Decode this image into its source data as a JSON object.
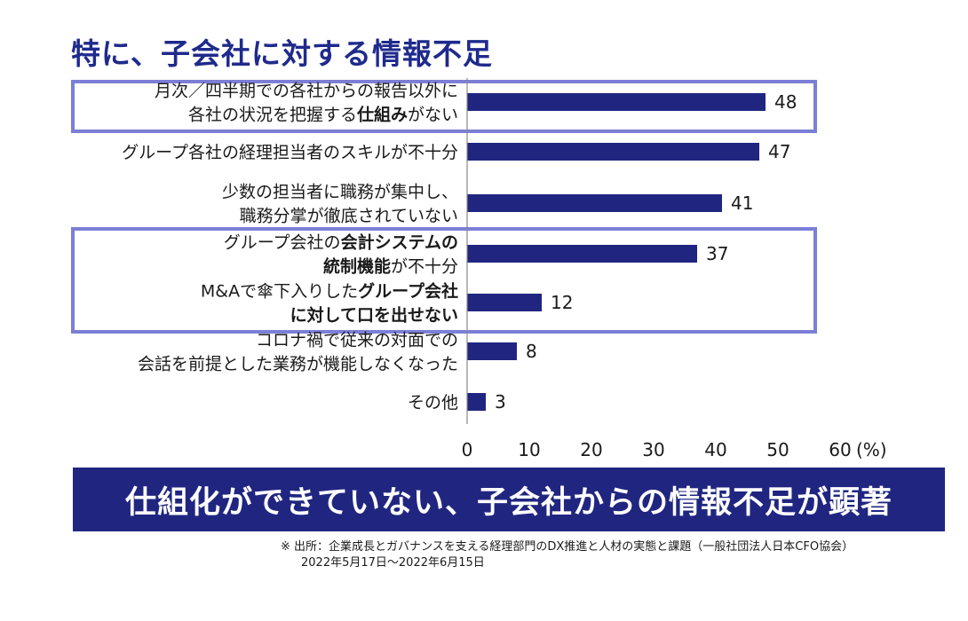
{
  "title": "特に、子会社に対する情報不足",
  "chart_data": {
    "type": "bar",
    "orientation": "horizontal",
    "categories": [
      {
        "lines": [
          [
            {
              "t": "月次／四半期での各社からの報告以外に",
              "b": false
            }
          ],
          [
            {
              "t": "各社の状況を把握する",
              "b": false
            },
            {
              "t": "仕組み",
              "b": true
            },
            {
              "t": "がない",
              "b": false
            }
          ]
        ]
      },
      {
        "lines": [
          [
            {
              "t": "グループ各社の経理担当者のスキルが不十分",
              "b": false
            }
          ]
        ]
      },
      {
        "lines": [
          [
            {
              "t": "少数の担当者に職務が集中し、",
              "b": false
            }
          ],
          [
            {
              "t": "職務分掌が徹底されていない",
              "b": false
            }
          ]
        ]
      },
      {
        "lines": [
          [
            {
              "t": "グループ会社の",
              "b": false
            },
            {
              "t": "会計システムの",
              "b": true
            }
          ],
          [
            {
              "t": "統制機能",
              "b": true
            },
            {
              "t": "が不十分",
              "b": false
            }
          ]
        ]
      },
      {
        "lines": [
          [
            {
              "t": "M&Aで傘下入りした",
              "b": false
            },
            {
              "t": "グループ会社",
              "b": true
            }
          ],
          [
            {
              "t": "に対して口を出せない",
              "b": true
            }
          ]
        ]
      },
      {
        "lines": [
          [
            {
              "t": "コロナ禍で従来の対面での",
              "b": false
            }
          ],
          [
            {
              "t": "会話を前提とした業務が機能しなくなった",
              "b": false
            }
          ]
        ]
      },
      {
        "lines": [
          [
            {
              "t": "その他",
              "b": false
            }
          ]
        ]
      }
    ],
    "values": [
      48,
      47,
      41,
      37,
      12,
      8,
      3
    ],
    "value_labels": [
      "48",
      "47",
      "41",
      "37",
      "12",
      "8",
      "3"
    ],
    "xlim": [
      0,
      60
    ],
    "x_ticks": [
      "0",
      "10",
      "20",
      "30",
      "40",
      "50",
      "60"
    ],
    "x_unit": "(%)",
    "highlight_groups": [
      [
        0
      ],
      [
        3,
        4
      ]
    ],
    "bar_color": "#202680",
    "highlight_color": "#7b7fd6"
  },
  "banner_text": "仕組化ができていない、子会社からの情報不足が顕著",
  "source_line1": "※ 出所：企業成長とガバナンスを支える経理部門のDX推進と人材の実態と課題（一般社団法人日本CFO協会）",
  "source_line2": "2022年5月17日～2022年6月15日"
}
